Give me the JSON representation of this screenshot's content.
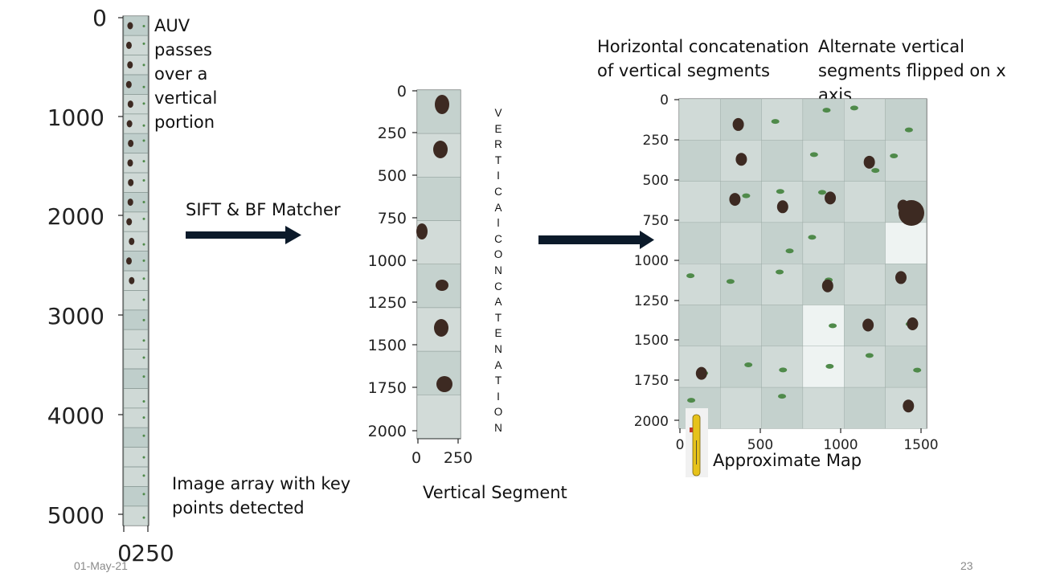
{
  "panels": {
    "image_array": {
      "caption": "AUV\npasses\nover a\nvertical\nportion",
      "note": "Image array with key\npoints detected",
      "y_ticks": [
        "0",
        "1000",
        "2000",
        "3000",
        "4000",
        "5000"
      ],
      "x_ticks": [
        "0",
        "250"
      ]
    },
    "arrow1_label": "SIFT & BF Matcher",
    "vertical_segment": {
      "y_ticks": [
        "0",
        "250",
        "500",
        "750",
        "1000",
        "1250",
        "1500",
        "1750",
        "2000"
      ],
      "x_ticks": [
        "0",
        "250"
      ],
      "caption": "Vertical Segment"
    },
    "vertical_concatenation_letters": [
      "V",
      "E",
      "R",
      "T",
      "I",
      "C",
      "A",
      "l",
      "C",
      "O",
      "N",
      "C",
      "A",
      "T",
      "E",
      "N",
      "A",
      "T",
      "I",
      "O",
      "N"
    ],
    "map": {
      "header_left": "Horizontal concatenation\nof vertical segments",
      "header_right": "Alternate vertical\nsegments flipped on x axis",
      "y_ticks": [
        "0",
        "250",
        "500",
        "750",
        "1000",
        "1250",
        "1500",
        "1750",
        "2000"
      ],
      "x_ticks": [
        "0",
        "500",
        "1000",
        "1500"
      ],
      "caption": "Approximate Map"
    }
  },
  "footer": {
    "date": "01-May-21",
    "page": "23"
  },
  "colors": {
    "tile_bg": "#c9d6d2",
    "tile_dark": "#3d2a22",
    "plant_green": "#4f8a4a",
    "arrow": "#0b1a2a",
    "auv_yellow": "#e6c21a"
  }
}
